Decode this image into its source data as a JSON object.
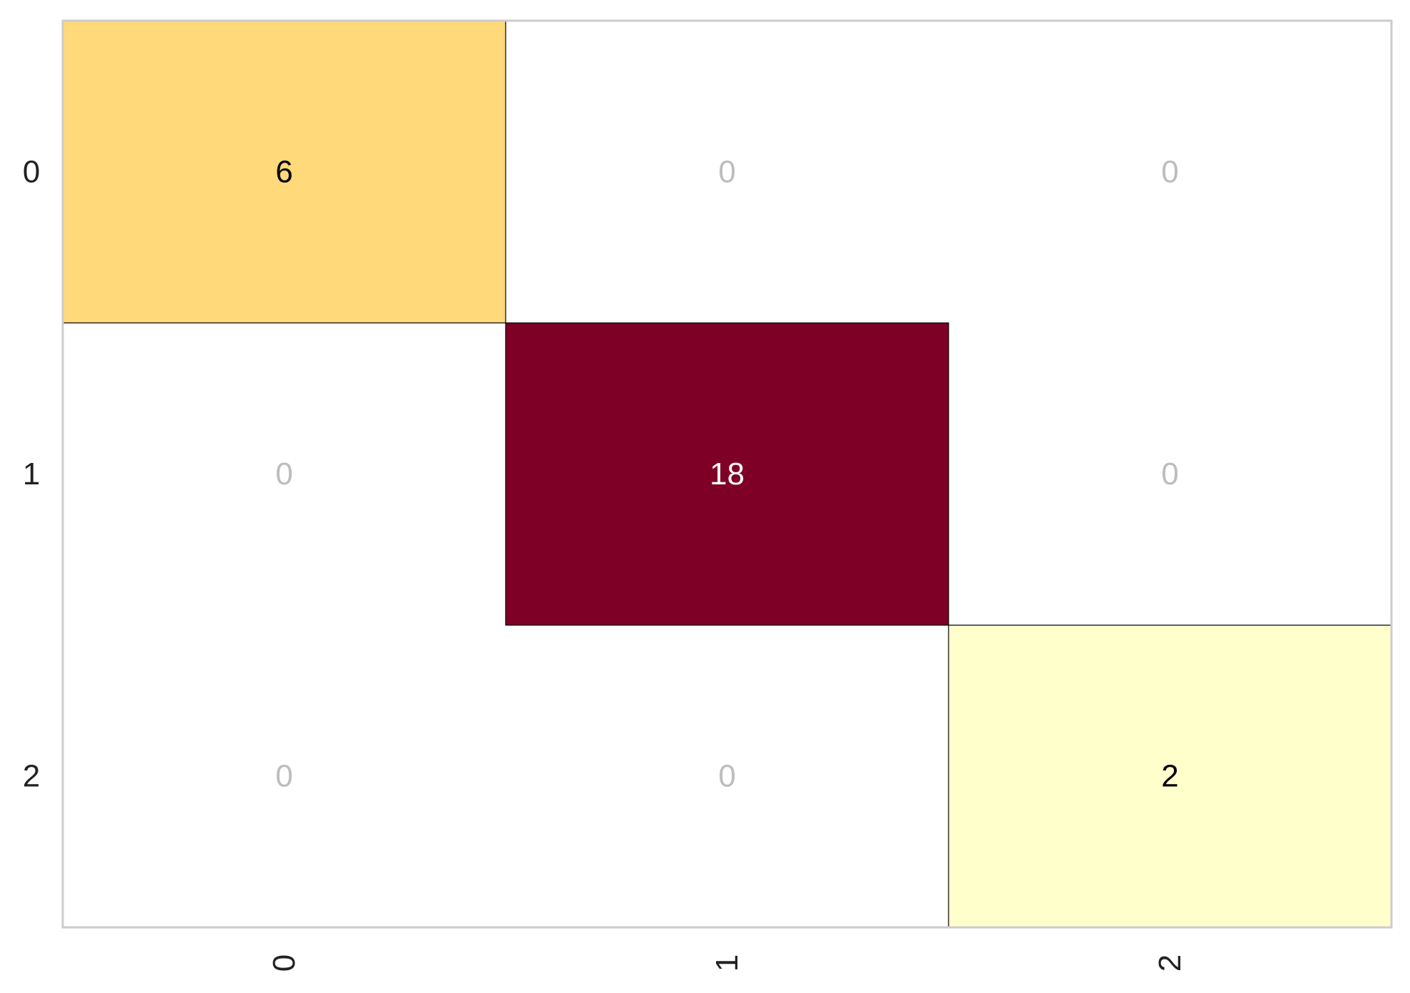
{
  "chart_data": {
    "type": "heatmap",
    "title": "",
    "xlabel": "",
    "ylabel": "",
    "x_categories": [
      "0",
      "1",
      "2"
    ],
    "y_categories": [
      "0",
      "1",
      "2"
    ],
    "matrix": [
      [
        6,
        0,
        0
      ],
      [
        0,
        18,
        0
      ],
      [
        0,
        0,
        2
      ]
    ],
    "cell_colors": [
      [
        "#FFD97A",
        "#FFFFFF",
        "#FFFFFF"
      ],
      [
        "#FFFFFF",
        "#7F0026",
        "#FFFFFF"
      ],
      [
        "#FFFFFF",
        "#FFFFFF",
        "#FFFFCC"
      ]
    ],
    "label_colors": {
      "zero": "#BDBDBD",
      "dark_cell": "#FFFFFF",
      "light_cell": "#000000"
    },
    "colors": {
      "frame": "#CCCCCC",
      "cell_edge": "#000000",
      "tick_text": "#222222"
    },
    "x_tick_rotation": "vertical",
    "grid": false,
    "legend": "none"
  }
}
